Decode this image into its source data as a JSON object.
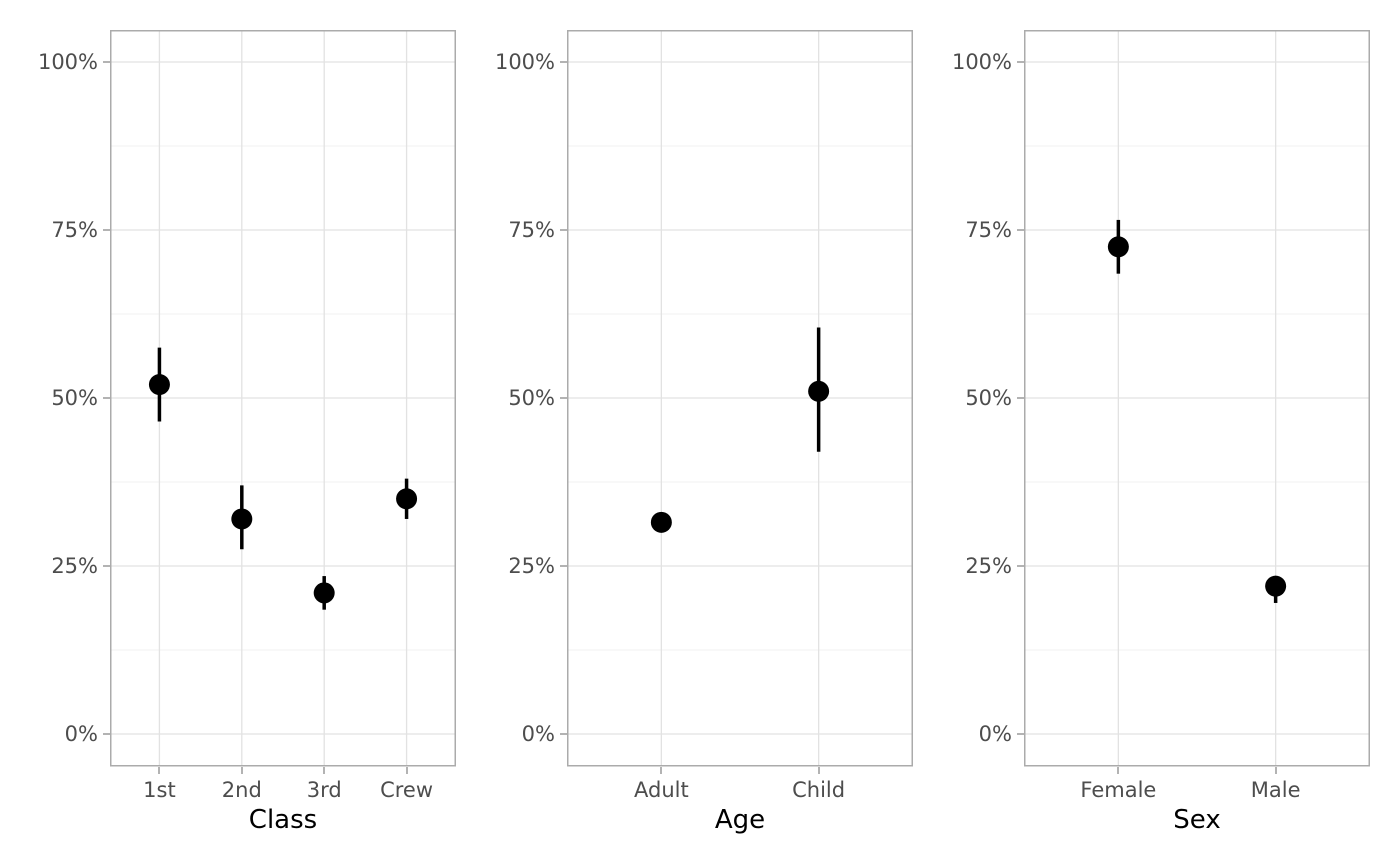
{
  "figure": {
    "background": "#ffffff",
    "panel_background": "#ffffff",
    "panel_border_color": "#ababab",
    "grid_major_color": "#e2e2e2",
    "grid_minor_color": "#f0f0f0",
    "tick_mark_color": "#b3b3b3",
    "axis_text_color": "#4d4d4d",
    "axis_title_color": "#000000",
    "point_color": "#000000"
  },
  "chart_data": {
    "type": "pointrange",
    "title": "",
    "grid": "on",
    "legend": "none",
    "y_axis": {
      "unit": "%",
      "ylim": [
        0,
        100
      ],
      "tick_values": [
        100,
        75,
        50,
        25,
        0
      ],
      "tick_labels": [
        "100%",
        "75%",
        "50%",
        "25%",
        "0%"
      ],
      "minor_tick_values": [
        87.5,
        62.5,
        37.5,
        12.5
      ]
    },
    "panels": [
      {
        "xlabel": "Class",
        "categories": [
          "1st",
          "2nd",
          "3rd",
          "Crew"
        ],
        "values": [
          52,
          32,
          21,
          35
        ],
        "ci_low": [
          46.5,
          27.5,
          18.5,
          32
        ],
        "ci_high": [
          57.5,
          37,
          23.5,
          38
        ]
      },
      {
        "xlabel": "Age",
        "categories": [
          "Adult",
          "Child"
        ],
        "values": [
          31.5,
          51
        ],
        "ci_low": [
          30,
          42
        ],
        "ci_high": [
          33,
          60.5
        ]
      },
      {
        "xlabel": "Sex",
        "categories": [
          "Female",
          "Male"
        ],
        "values": [
          72.5,
          22
        ],
        "ci_low": [
          68.5,
          19.5
        ],
        "ci_high": [
          76.5,
          23.5
        ]
      }
    ]
  }
}
